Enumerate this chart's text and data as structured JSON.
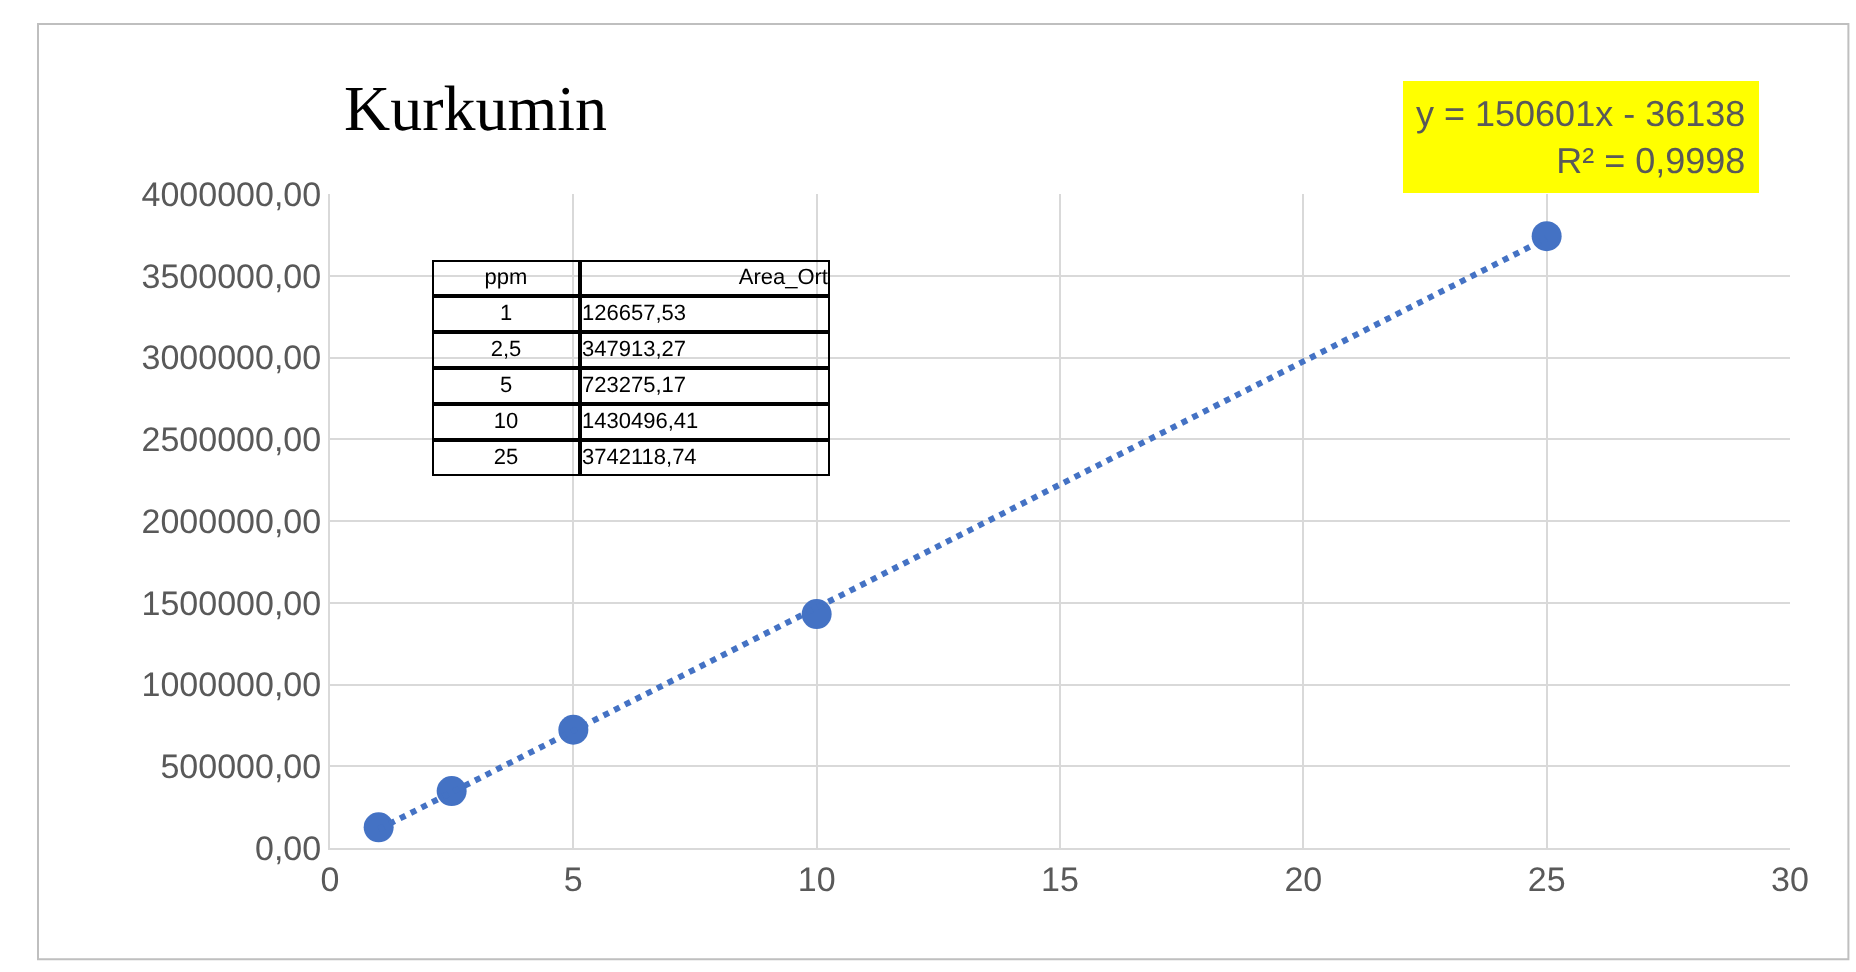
{
  "chart_data": {
    "type": "scatter",
    "title": "Kurkumin",
    "x": [
      1,
      2.5,
      5,
      10,
      25
    ],
    "series": [
      {
        "color": "#4472c4",
        "values": [
          126657.53,
          347913.27,
          723275.17,
          1430496.41,
          3742118.74
        ]
      },
      {
        "type": "line",
        "color": "#4472c4",
        "line_style": "dotted",
        "marker": "none",
        "x": [
          1,
          25
        ],
        "values": [
          114463,
          3728887
        ]
      }
    ],
    "annotations": [
      "y = 150601x - 36138",
      "R² = 0,9998",
      "ppm",
      "Area_Ort",
      "1",
      "126657,53",
      "2,5",
      "347913,27",
      "5",
      "723275,17",
      "10",
      "1430496,41",
      "25",
      "3742118,74"
    ],
    "xlim": [
      0,
      30
    ],
    "xticks": [
      0,
      5,
      10,
      15,
      20,
      25,
      30
    ],
    "ylim": [
      0,
      4000000
    ],
    "yticks": [
      {
        "value": 0,
        "label": "0,00"
      },
      {
        "value": 500000,
        "label": "500000,00"
      },
      {
        "value": 1000000,
        "label": "1000000,00"
      },
      {
        "value": 1500000,
        "label": "1500000,00"
      },
      {
        "value": 2000000,
        "label": "2000000,00"
      },
      {
        "value": 2500000,
        "label": "2500000,00"
      },
      {
        "value": 3000000,
        "label": "3000000,00"
      },
      {
        "value": 3500000,
        "label": "3500000,00"
      },
      {
        "value": 4000000,
        "label": "4000000,00"
      }
    ],
    "grid": true,
    "marker": "circle"
  }
}
